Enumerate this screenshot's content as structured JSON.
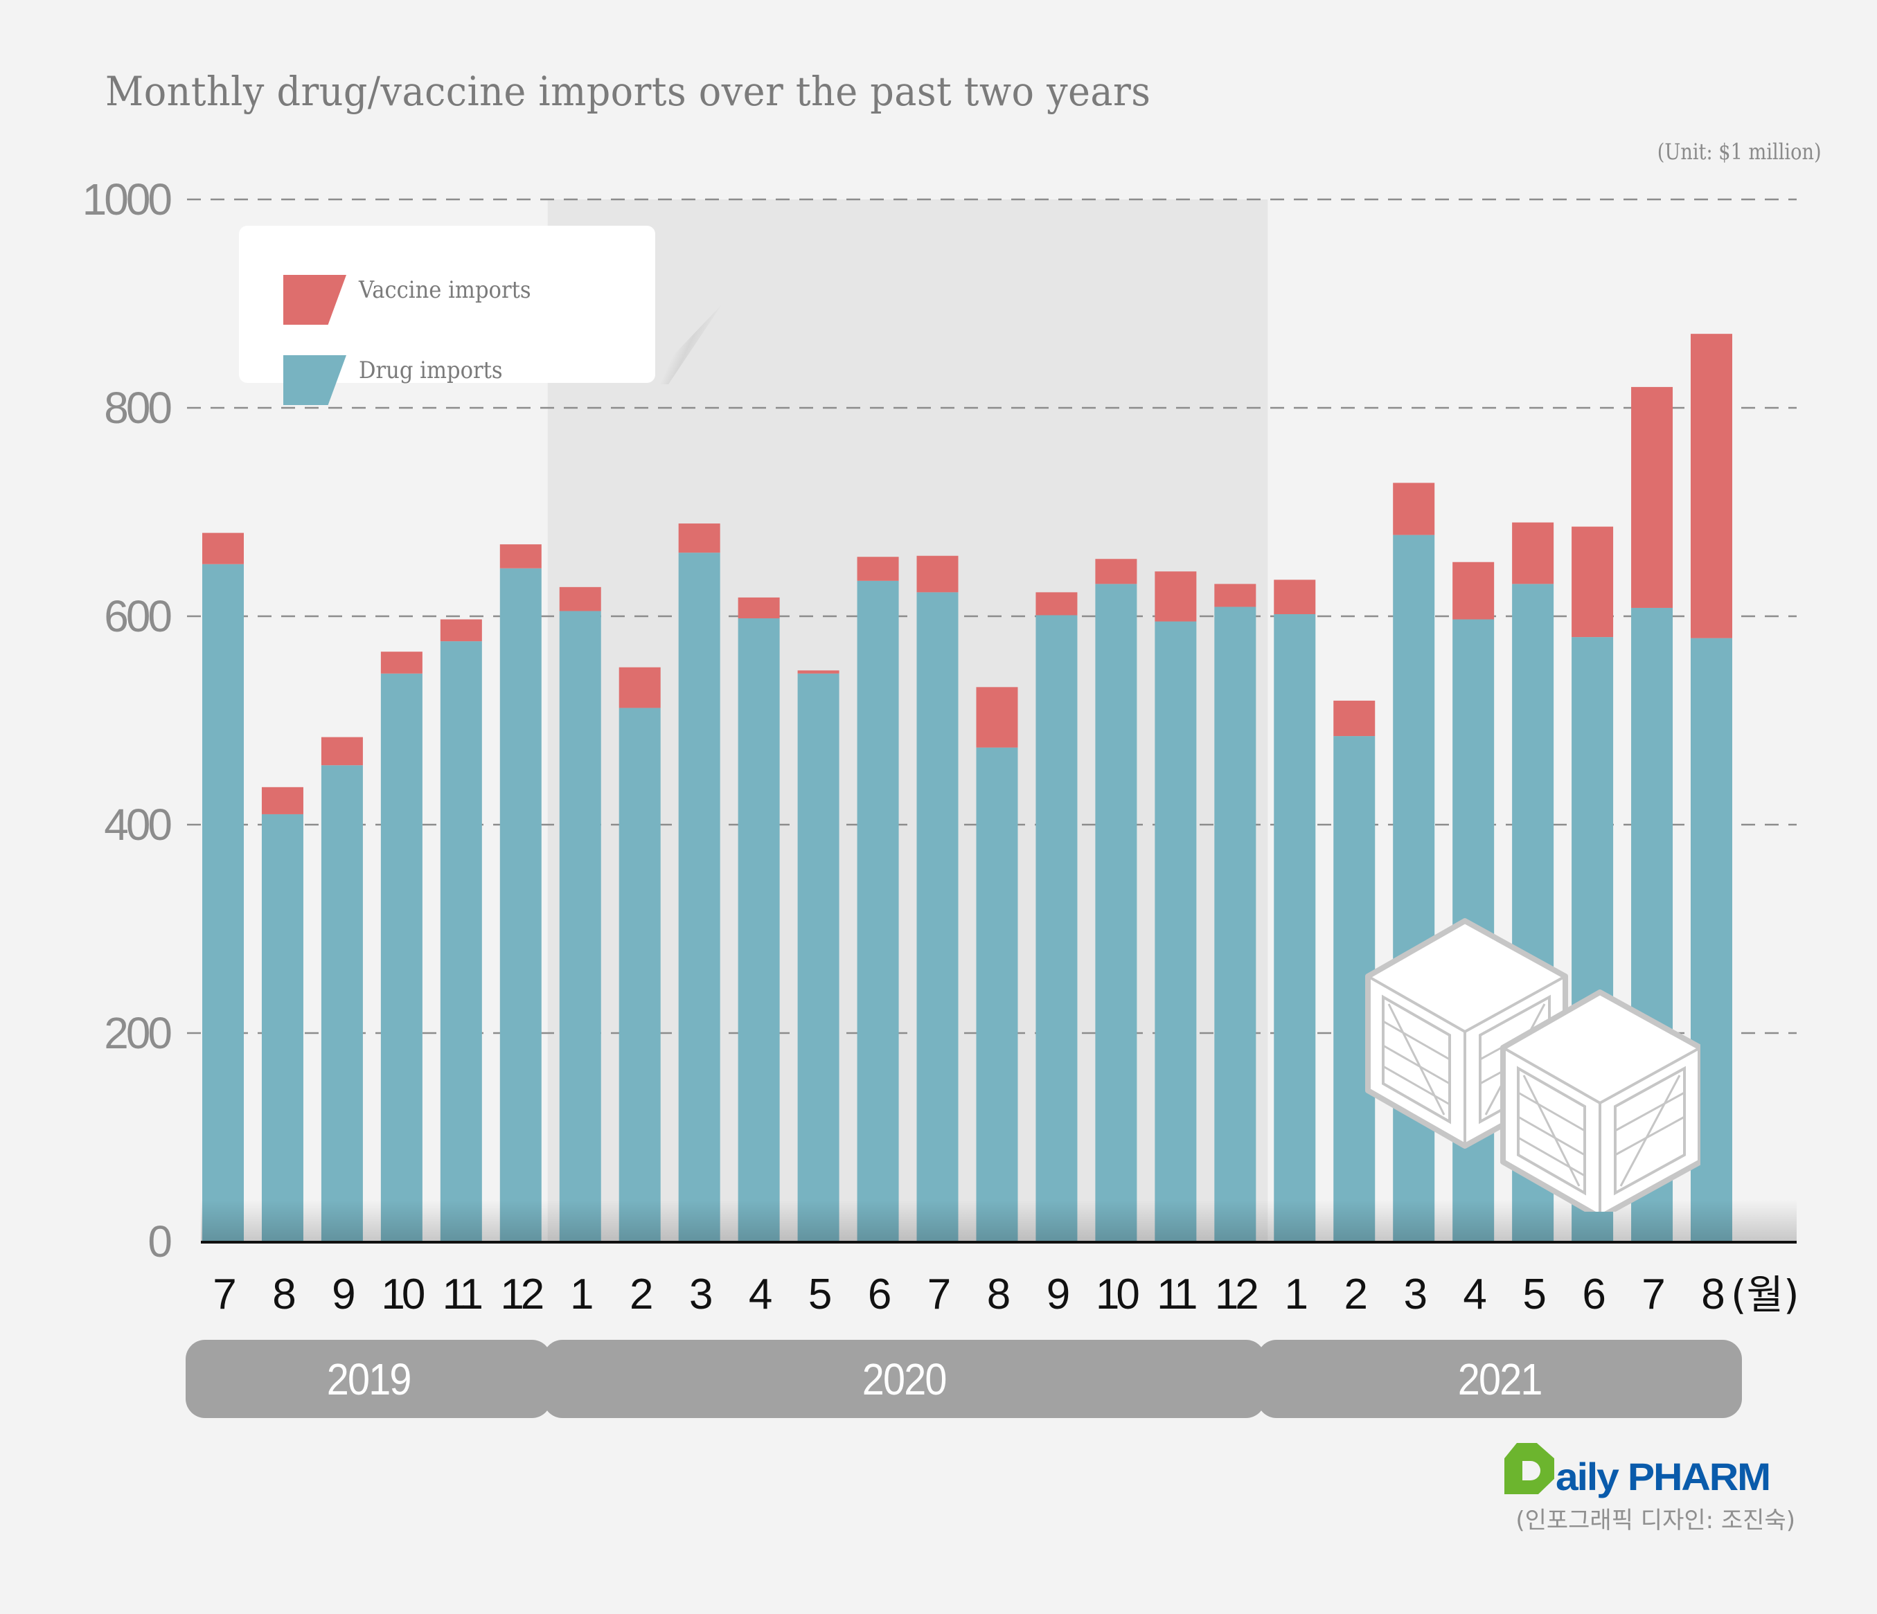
{
  "title": "Monthly drug/vaccine imports over the past two years",
  "unit_label": "(Unit: $1 million)",
  "legend": [
    {
      "label": "Vaccine imports",
      "color": "#de6e6d"
    },
    {
      "label": "Drug imports",
      "color": "#78b3c1"
    }
  ],
  "colors": {
    "vaccine": "#de6e6d",
    "drug": "#78b3c1",
    "highlight_band": "#e6e6e6",
    "year_band": "#a2a2a2",
    "grid": "#8c8c8c",
    "axis_text": "#8c8c8c",
    "month_text": "#111111"
  },
  "month_unit_suffix": "(월)",
  "years": [
    {
      "label": "2019",
      "start_index": 0,
      "end_index": 5
    },
    {
      "label": "2020",
      "start_index": 6,
      "end_index": 17
    },
    {
      "label": "2021",
      "start_index": 18,
      "end_index": 25
    }
  ],
  "branding": {
    "logo_text": "aily PHARM",
    "credit": "(인포그래픽 디자인: 조진숙)"
  },
  "chart_data": {
    "type": "bar",
    "stacked": true,
    "title": "Monthly drug/vaccine imports over the past two years",
    "xlabel": "",
    "ylabel": "",
    "unit": "$1 million",
    "ylim": [
      0,
      1000
    ],
    "yticks": [
      0,
      200,
      400,
      600,
      800,
      1000
    ],
    "grid": true,
    "legend_position": "top-left",
    "highlighted_range": {
      "from_index": 6,
      "to_index": 17,
      "label": "2020"
    },
    "categories": [
      "7",
      "8",
      "9",
      "10",
      "11",
      "12",
      "1",
      "2",
      "3",
      "4",
      "5",
      "6",
      "7",
      "8",
      "9",
      "10",
      "11",
      "12",
      "1",
      "2",
      "3",
      "4",
      "5",
      "6",
      "7",
      "8"
    ],
    "category_years": [
      "2019",
      "2019",
      "2019",
      "2019",
      "2019",
      "2019",
      "2020",
      "2020",
      "2020",
      "2020",
      "2020",
      "2020",
      "2020",
      "2020",
      "2020",
      "2020",
      "2020",
      "2020",
      "2021",
      "2021",
      "2021",
      "2021",
      "2021",
      "2021",
      "2021",
      "2021"
    ],
    "series": [
      {
        "name": "Drug imports",
        "values": [
          650,
          410,
          457,
          545,
          576,
          646,
          605,
          512,
          661,
          598,
          545,
          634,
          623,
          474,
          601,
          631,
          595,
          609,
          602,
          485,
          678,
          597,
          631,
          580,
          608,
          579
        ]
      },
      {
        "name": "Vaccine imports",
        "values": [
          30,
          26,
          27,
          21,
          21,
          23,
          23,
          39,
          28,
          20,
          3,
          23,
          35,
          58,
          22,
          24,
          48,
          22,
          33,
          34,
          50,
          55,
          59,
          106,
          212,
          292
        ]
      }
    ],
    "totals": [
      680,
      436,
      484,
      566,
      597,
      669,
      628,
      551,
      689,
      618,
      548,
      657,
      658,
      532,
      623,
      655,
      643,
      631,
      635,
      519,
      728,
      652,
      690,
      686,
      820,
      871
    ]
  }
}
